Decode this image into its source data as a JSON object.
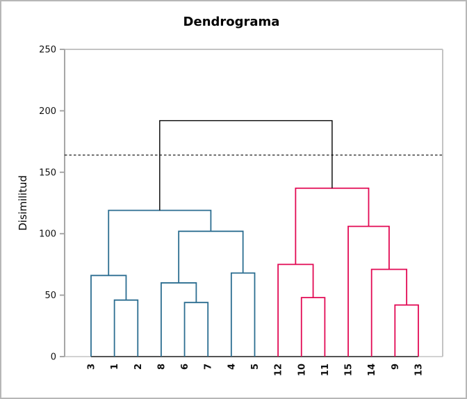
{
  "window": {
    "background": "#ffffff",
    "border_color": "#b7b7b7"
  },
  "chart_data": {
    "type": "dendrogram",
    "title": "Dendrograma",
    "xlabel": "",
    "ylabel": "Disimilitud",
    "ylim": [
      0,
      250
    ],
    "yticks": [
      0,
      50,
      100,
      150,
      200,
      250
    ],
    "grid": false,
    "legend": "none",
    "leaf_order": [
      "3",
      "1",
      "2",
      "8",
      "6",
      "7",
      "4",
      "5",
      "12",
      "10",
      "11",
      "15",
      "14",
      "9",
      "13"
    ],
    "merges": [
      {
        "id": "m1",
        "children": [
          "1",
          "2"
        ],
        "height": 46,
        "color_key": "cluster1"
      },
      {
        "id": "m2",
        "children": [
          "6",
          "7"
        ],
        "height": 44,
        "color_key": "cluster1"
      },
      {
        "id": "m3",
        "children": [
          "3",
          "m1"
        ],
        "height": 66,
        "color_key": "cluster1"
      },
      {
        "id": "m4",
        "children": [
          "8",
          "m2"
        ],
        "height": 60,
        "color_key": "cluster1"
      },
      {
        "id": "m5",
        "children": [
          "4",
          "5"
        ],
        "height": 68,
        "color_key": "cluster1"
      },
      {
        "id": "m6",
        "children": [
          "m4",
          "m5"
        ],
        "height": 102,
        "color_key": "cluster1"
      },
      {
        "id": "m7",
        "children": [
          "m3",
          "m6"
        ],
        "height": 119,
        "color_key": "cluster1"
      },
      {
        "id": "m8",
        "children": [
          "10",
          "11"
        ],
        "height": 48,
        "color_key": "cluster2"
      },
      {
        "id": "m9",
        "children": [
          "12",
          "m8"
        ],
        "height": 75,
        "color_key": "cluster2"
      },
      {
        "id": "m10",
        "children": [
          "9",
          "13"
        ],
        "height": 42,
        "color_key": "cluster2"
      },
      {
        "id": "m11",
        "children": [
          "14",
          "m10"
        ],
        "height": 71,
        "color_key": "cluster2"
      },
      {
        "id": "m12",
        "children": [
          "15",
          "m11"
        ],
        "height": 106,
        "color_key": "cluster2"
      },
      {
        "id": "m13",
        "children": [
          "m9",
          "m12"
        ],
        "height": 137,
        "color_key": "cluster2"
      },
      {
        "id": "m14",
        "children": [
          "m7",
          "m13"
        ],
        "height": 192,
        "color_key": "root"
      }
    ],
    "cutoff_line": {
      "value": 164,
      "style": "dashed",
      "color": "#000000"
    },
    "colors": {
      "cluster1": "#2c6e91",
      "cluster2": "#e20a54",
      "root": "#000000",
      "axis": "#a6a6a6",
      "plot_border": "#c3c3c3"
    }
  }
}
